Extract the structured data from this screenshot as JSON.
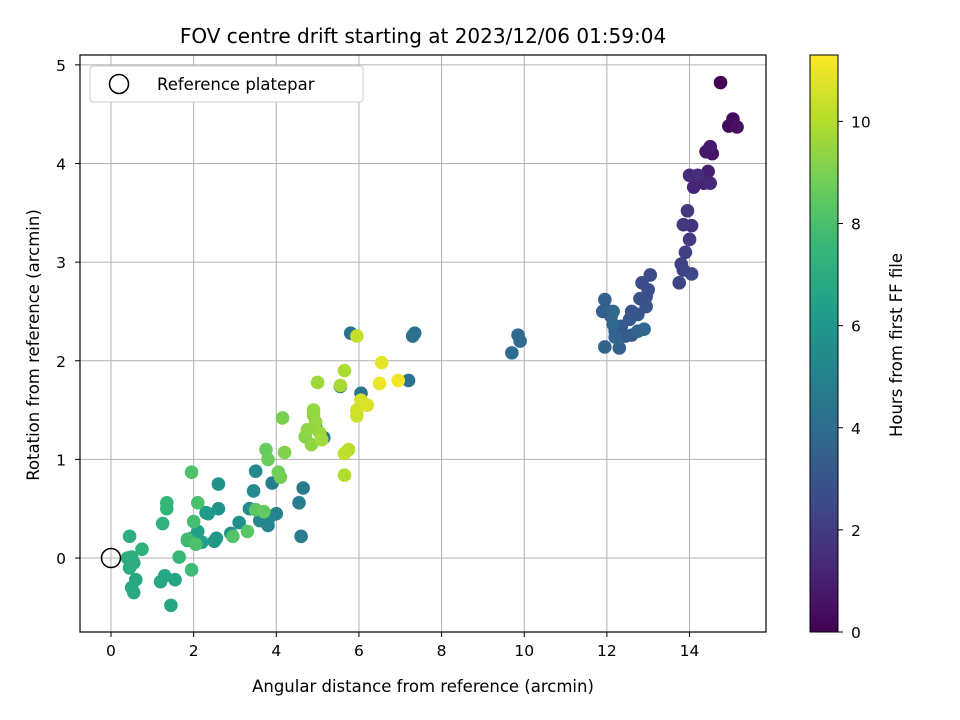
{
  "chart_data": {
    "type": "scatter",
    "title": "FOV centre drift starting at 2023/12/06 01:59:04",
    "xlabel": "Angular distance from reference (arcmin)",
    "ylabel": "Rotation from reference (arcmin)",
    "xlim": [
      -0.75,
      15.85
    ],
    "ylim": [
      -0.75,
      5.1
    ],
    "xticks": [
      0,
      2,
      4,
      6,
      8,
      10,
      12,
      14
    ],
    "yticks": [
      0,
      1,
      2,
      3,
      4,
      5
    ],
    "grid": true,
    "legend": {
      "placement": "upper-left",
      "entries": [
        "Reference platepar"
      ]
    },
    "reference_point": {
      "x": 0,
      "y": 0
    },
    "colorbar": {
      "label": "Hours from first FF file",
      "colormap": "viridis",
      "range": [
        0,
        11.3
      ],
      "ticks": [
        0,
        2,
        4,
        6,
        8,
        10
      ]
    },
    "colors": {
      "viridis": [
        "#440154",
        "#482878",
        "#3e4989",
        "#31688e",
        "#26828e",
        "#1f9e89",
        "#35b779",
        "#6ece58",
        "#b5de2b",
        "#fde725"
      ],
      "reference_marker": "#000000",
      "grid": "#b0b0b0"
    },
    "series": [
      {
        "points": [
          [
            14.75,
            4.82,
            0.0
          ],
          [
            14.95,
            4.38,
            0.2
          ],
          [
            15.05,
            4.45,
            0.35
          ],
          [
            15.15,
            4.37,
            0.5
          ],
          [
            14.55,
            4.1,
            0.6
          ],
          [
            14.4,
            4.12,
            0.7
          ],
          [
            14.5,
            4.17,
            0.8
          ],
          [
            14.45,
            3.92,
            1.0
          ],
          [
            14.35,
            3.8,
            1.1
          ],
          [
            14.1,
            3.76,
            1.2
          ],
          [
            14.5,
            3.8,
            1.3
          ],
          [
            14.0,
            3.88,
            1.4
          ],
          [
            14.2,
            3.88,
            1.5
          ],
          [
            14.05,
            3.37,
            1.7
          ],
          [
            13.95,
            3.52,
            1.8
          ],
          [
            13.85,
            3.38,
            1.9
          ],
          [
            14.0,
            3.23,
            2.0
          ],
          [
            13.9,
            3.1,
            2.1
          ],
          [
            13.8,
            2.98,
            2.2
          ],
          [
            13.85,
            2.92,
            2.3
          ],
          [
            13.75,
            2.79,
            2.4
          ],
          [
            14.05,
            2.88,
            2.5
          ],
          [
            13.05,
            2.87,
            2.6
          ],
          [
            12.85,
            2.79,
            2.7
          ],
          [
            13.0,
            2.72,
            2.75
          ],
          [
            12.95,
            2.65,
            2.8
          ],
          [
            12.8,
            2.63,
            2.85
          ],
          [
            12.95,
            2.55,
            2.9
          ],
          [
            12.6,
            2.5,
            3.0
          ],
          [
            12.75,
            2.47,
            3.05
          ],
          [
            12.55,
            2.42,
            3.1
          ],
          [
            12.35,
            2.35,
            3.15
          ],
          [
            12.2,
            2.3,
            3.2
          ],
          [
            12.45,
            2.25,
            3.25
          ],
          [
            12.6,
            2.26,
            3.3
          ],
          [
            12.1,
            2.45,
            3.35
          ],
          [
            12.0,
            2.51,
            3.4
          ],
          [
            11.95,
            2.62,
            3.4
          ],
          [
            11.9,
            2.5,
            3.45
          ],
          [
            12.3,
            2.13,
            3.5
          ],
          [
            11.95,
            2.14,
            3.55
          ],
          [
            12.2,
            2.24,
            3.6
          ],
          [
            12.75,
            2.3,
            3.65
          ],
          [
            12.9,
            2.32,
            3.7
          ],
          [
            12.15,
            2.37,
            3.75
          ],
          [
            12.15,
            2.5,
            3.8
          ],
          [
            9.85,
            2.26,
            3.85
          ],
          [
            9.9,
            2.2,
            3.9
          ],
          [
            9.7,
            2.08,
            4.0
          ],
          [
            7.3,
            2.25,
            4.1
          ],
          [
            7.35,
            2.28,
            4.15
          ],
          [
            7.2,
            1.8,
            4.2
          ],
          [
            6.05,
            1.67,
            4.3
          ],
          [
            5.8,
            2.28,
            4.35
          ],
          [
            5.55,
            1.74,
            4.4
          ],
          [
            5.15,
            1.22,
            4.5
          ],
          [
            4.95,
            1.33,
            4.6
          ],
          [
            4.65,
            0.71,
            4.7
          ],
          [
            4.55,
            0.56,
            4.8
          ],
          [
            4.6,
            0.22,
            4.85
          ],
          [
            3.9,
            0.76,
            4.9
          ],
          [
            4.0,
            0.45,
            5.0
          ],
          [
            3.85,
            0.42,
            5.1
          ],
          [
            3.8,
            0.33,
            5.2
          ],
          [
            3.6,
            0.38,
            5.3
          ],
          [
            3.5,
            0.88,
            5.35
          ],
          [
            3.45,
            0.68,
            5.4
          ],
          [
            3.35,
            0.5,
            5.5
          ],
          [
            3.1,
            0.36,
            5.6
          ],
          [
            2.9,
            0.25,
            5.7
          ],
          [
            2.6,
            0.75,
            5.8
          ],
          [
            2.6,
            0.5,
            5.85
          ],
          [
            2.55,
            0.2,
            5.9
          ],
          [
            2.5,
            0.17,
            6.0
          ],
          [
            2.3,
            0.46,
            6.1
          ],
          [
            2.35,
            0.45,
            6.2
          ],
          [
            2.2,
            0.16,
            6.3
          ],
          [
            2.1,
            0.27,
            6.4
          ],
          [
            1.95,
            0.2,
            6.5
          ],
          [
            1.85,
            0.18,
            6.55
          ],
          [
            1.55,
            -0.22,
            6.6
          ],
          [
            1.45,
            -0.48,
            6.65
          ],
          [
            1.3,
            -0.18,
            6.7
          ],
          [
            1.2,
            -0.24,
            6.75
          ],
          [
            0.6,
            -0.22,
            6.8
          ],
          [
            0.55,
            -0.35,
            6.85
          ],
          [
            0.5,
            -0.3,
            6.9
          ],
          [
            0.45,
            -0.1,
            6.95
          ],
          [
            0.55,
            -0.05,
            7.0
          ],
          [
            0.4,
            0.0,
            7.05
          ],
          [
            0.5,
            0.01,
            7.1
          ],
          [
            0.45,
            0.22,
            7.15
          ],
          [
            0.75,
            0.09,
            7.2
          ],
          [
            1.25,
            0.35,
            7.3
          ],
          [
            1.35,
            0.5,
            7.4
          ],
          [
            1.35,
            0.56,
            7.5
          ],
          [
            1.65,
            0.01,
            7.6
          ],
          [
            1.95,
            -0.12,
            7.7
          ],
          [
            1.85,
            0.19,
            7.8
          ],
          [
            2.0,
            0.37,
            7.9
          ],
          [
            2.1,
            0.56,
            8.0
          ],
          [
            2.05,
            0.14,
            8.05
          ],
          [
            1.95,
            0.87,
            8.1
          ],
          [
            2.95,
            0.22,
            8.2
          ],
          [
            3.3,
            0.27,
            8.3
          ],
          [
            3.5,
            0.49,
            8.4
          ],
          [
            3.7,
            0.47,
            8.5
          ],
          [
            3.75,
            1.1,
            8.6
          ],
          [
            3.8,
            1.0,
            8.7
          ],
          [
            4.05,
            0.87,
            8.8
          ],
          [
            4.1,
            0.82,
            8.9
          ],
          [
            4.15,
            1.42,
            9.0
          ],
          [
            4.2,
            1.07,
            9.1
          ],
          [
            4.7,
            1.23,
            9.2
          ],
          [
            4.75,
            1.3,
            9.3
          ],
          [
            4.85,
            1.15,
            9.35
          ],
          [
            4.9,
            1.45,
            9.4
          ],
          [
            4.9,
            1.5,
            9.45
          ],
          [
            4.95,
            1.38,
            9.5
          ],
          [
            5.05,
            1.27,
            9.55
          ],
          [
            5.0,
            1.78,
            9.6
          ],
          [
            5.1,
            1.2,
            9.7
          ],
          [
            5.55,
            1.75,
            9.8
          ],
          [
            5.65,
            1.9,
            9.9
          ],
          [
            5.65,
            0.84,
            10.0
          ],
          [
            5.75,
            1.1,
            10.1
          ],
          [
            5.65,
            1.06,
            10.2
          ],
          [
            5.95,
            2.25,
            10.3
          ],
          [
            5.95,
            1.44,
            10.4
          ],
          [
            5.95,
            1.5,
            10.5
          ],
          [
            6.05,
            1.6,
            10.6
          ],
          [
            6.2,
            1.55,
            10.7
          ],
          [
            6.55,
            1.98,
            10.9
          ],
          [
            6.5,
            1.77,
            11.0
          ],
          [
            6.95,
            1.8,
            11.1
          ]
        ]
      }
    ]
  }
}
